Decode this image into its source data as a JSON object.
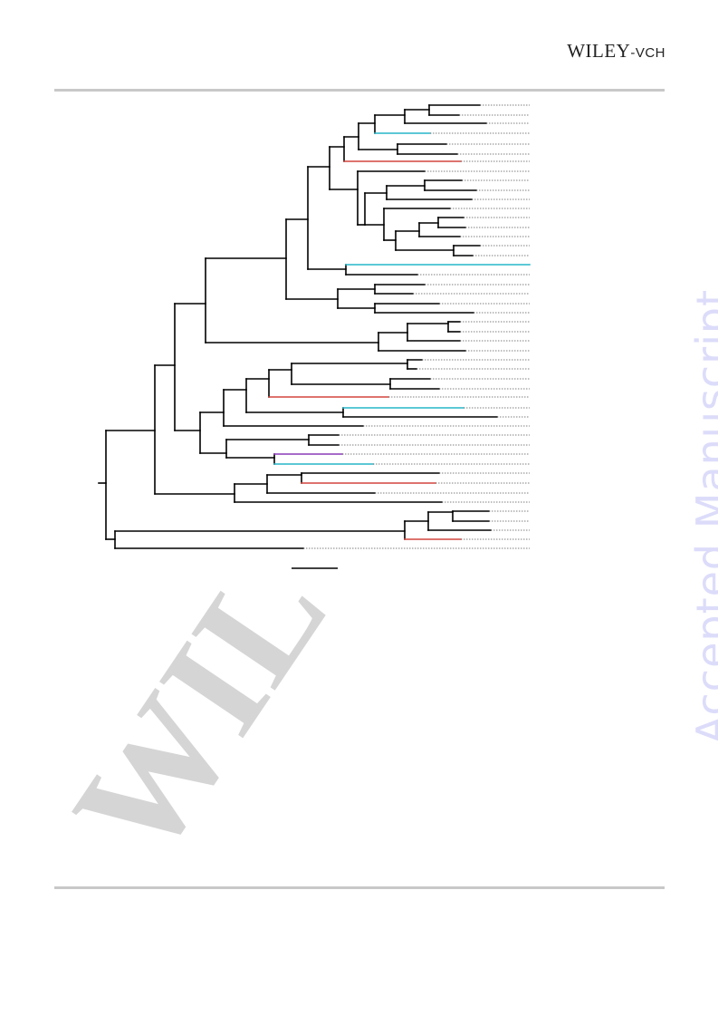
{
  "header": {
    "publisher_main": "WILEY",
    "publisher_sub": "-VCH"
  },
  "sidebar": {
    "watermark_text": "Accepted Manuscript"
  },
  "figure": {
    "type": "phylogenetic-tree",
    "taxon_count": 47,
    "highlight_colors": {
      "default": "#000000",
      "cyan": "#27b6c8",
      "red": "#d4453f",
      "purple": "#8a3ab9"
    },
    "watermark_color": "#d5d5d5"
  }
}
